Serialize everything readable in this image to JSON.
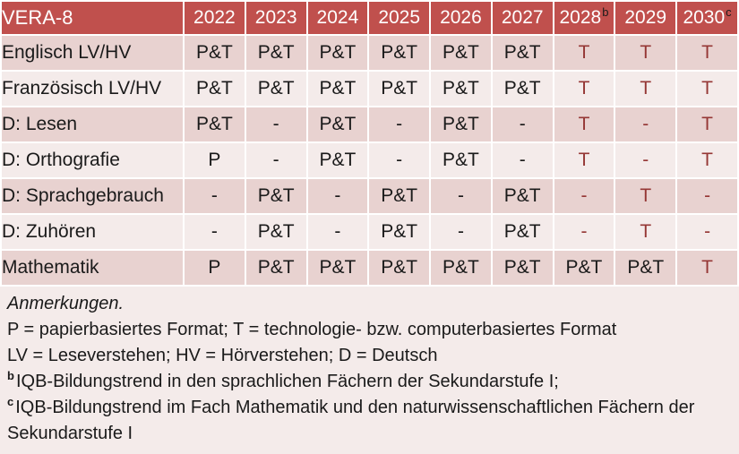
{
  "colors": {
    "header_bg": "#C0504D",
    "header_text": "#FFFFFF",
    "band_dark": "#E8D2D0",
    "band_light": "#F4EBEA",
    "grid": "#FFFFFF",
    "text": "#1A1A1A",
    "red_text": "#953735",
    "sup_text": "#1A1A1A"
  },
  "table": {
    "title": "VERA-8",
    "columns": [
      {
        "label": "2022",
        "sup": ""
      },
      {
        "label": "2023",
        "sup": ""
      },
      {
        "label": "2024",
        "sup": ""
      },
      {
        "label": "2025",
        "sup": ""
      },
      {
        "label": "2026",
        "sup": ""
      },
      {
        "label": "2027",
        "sup": ""
      },
      {
        "label": "2028",
        "sup": "b"
      },
      {
        "label": "2029",
        "sup": ""
      },
      {
        "label": "2030",
        "sup": "c"
      }
    ],
    "rows": [
      {
        "label": "Englisch LV/HV",
        "band": "dark",
        "cells": [
          {
            "v": "P&T"
          },
          {
            "v": "P&T"
          },
          {
            "v": "P&T"
          },
          {
            "v": "P&T"
          },
          {
            "v": "P&T"
          },
          {
            "v": "P&T"
          },
          {
            "v": "T",
            "red": true
          },
          {
            "v": "T",
            "red": true
          },
          {
            "v": "T",
            "red": true
          }
        ]
      },
      {
        "label": "Französisch LV/HV",
        "band": "light",
        "cells": [
          {
            "v": "P&T"
          },
          {
            "v": "P&T"
          },
          {
            "v": "P&T"
          },
          {
            "v": "P&T"
          },
          {
            "v": "P&T"
          },
          {
            "v": "P&T"
          },
          {
            "v": "T",
            "red": true
          },
          {
            "v": "T",
            "red": true
          },
          {
            "v": "T",
            "red": true
          }
        ]
      },
      {
        "label": "D: Lesen",
        "band": "dark",
        "cells": [
          {
            "v": "P&T"
          },
          {
            "v": "-"
          },
          {
            "v": "P&T"
          },
          {
            "v": "-"
          },
          {
            "v": "P&T"
          },
          {
            "v": "-"
          },
          {
            "v": "T",
            "red": true
          },
          {
            "v": "-",
            "red": true
          },
          {
            "v": "T",
            "red": true
          }
        ]
      },
      {
        "label": "D: Orthografie",
        "band": "light",
        "cells": [
          {
            "v": "P"
          },
          {
            "v": "-"
          },
          {
            "v": "P&T"
          },
          {
            "v": "-"
          },
          {
            "v": "P&T"
          },
          {
            "v": "-"
          },
          {
            "v": "T",
            "red": true
          },
          {
            "v": "-",
            "red": true
          },
          {
            "v": "T",
            "red": true
          }
        ]
      },
      {
        "label": "D: Sprachgebrauch",
        "band": "dark",
        "cells": [
          {
            "v": "-"
          },
          {
            "v": "P&T"
          },
          {
            "v": "-"
          },
          {
            "v": "P&T"
          },
          {
            "v": "-"
          },
          {
            "v": "P&T"
          },
          {
            "v": "-",
            "red": true
          },
          {
            "v": "T",
            "red": true
          },
          {
            "v": "-",
            "red": true
          }
        ]
      },
      {
        "label": "D: Zuhören",
        "band": "light",
        "cells": [
          {
            "v": "-"
          },
          {
            "v": "P&T"
          },
          {
            "v": "-"
          },
          {
            "v": "P&T"
          },
          {
            "v": "-"
          },
          {
            "v": "P&T"
          },
          {
            "v": "-",
            "red": true
          },
          {
            "v": "T",
            "red": true
          },
          {
            "v": "-",
            "red": true
          }
        ]
      },
      {
        "label": "Mathematik",
        "band": "dark",
        "cells": [
          {
            "v": "P"
          },
          {
            "v": "P&T"
          },
          {
            "v": "P&T"
          },
          {
            "v": "P&T"
          },
          {
            "v": "P&T"
          },
          {
            "v": "P&T"
          },
          {
            "v": "P&T"
          },
          {
            "v": "P&T"
          },
          {
            "v": "T",
            "red": true
          }
        ]
      }
    ]
  },
  "notes": {
    "lines": [
      {
        "text": "Anmerkungen.",
        "italic": true,
        "sup": ""
      },
      {
        "text": "P = papierbasiertes Format; T = technologie- bzw. computerbasiertes Format",
        "italic": false,
        "sup": ""
      },
      {
        "text": "LV = Leseverstehen; HV = Hörverstehen; D = Deutsch",
        "italic": false,
        "sup": ""
      },
      {
        "text": "IQB-Bildungstrend in den sprachlichen Fächern der Sekundarstufe I;",
        "italic": false,
        "sup": "b"
      },
      {
        "text": "IQB-Bildungstrend im Fach Mathematik und den naturwissenschaftlichen Fächern der Sekundarstufe I",
        "italic": false,
        "sup": "c"
      }
    ]
  }
}
